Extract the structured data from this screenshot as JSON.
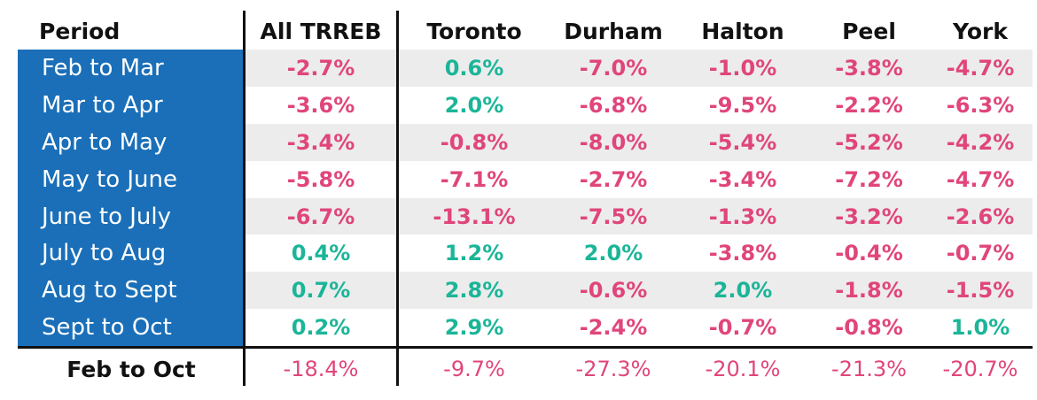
{
  "colors": {
    "negative": "#e0457b",
    "positive": "#1bb598",
    "period_bg": "#1a6fb8",
    "stripe": "#ececec"
  },
  "chart_data": {
    "type": "table",
    "columns": [
      "Period",
      "All TRREB",
      "Toronto",
      "Durham",
      "Halton",
      "Peel",
      "York"
    ],
    "rows": [
      {
        "period": "Feb to Mar",
        "values": [
          "-2.7%",
          "0.6%",
          "-7.0%",
          "-1.0%",
          "-3.8%",
          "-4.7%"
        ]
      },
      {
        "period": "Mar to Apr",
        "values": [
          "-3.6%",
          "2.0%",
          "-6.8%",
          "-9.5%",
          "-2.2%",
          "-6.3%"
        ]
      },
      {
        "period": "Apr to May",
        "values": [
          "-3.4%",
          "-0.8%",
          "-8.0%",
          "-5.4%",
          "-5.2%",
          "-4.2%"
        ]
      },
      {
        "period": "May to June",
        "values": [
          "-5.8%",
          "-7.1%",
          "-2.7%",
          "-3.4%",
          "-7.2%",
          "-4.7%"
        ]
      },
      {
        "period": "June to July",
        "values": [
          "-6.7%",
          "-13.1%",
          "-7.5%",
          "-1.3%",
          "-3.2%",
          "-2.6%"
        ]
      },
      {
        "period": "July to Aug",
        "values": [
          "0.4%",
          "1.2%",
          "2.0%",
          "-3.8%",
          "-0.4%",
          "-0.7%"
        ]
      },
      {
        "period": "Aug to Sept",
        "values": [
          "0.7%",
          "2.8%",
          "-0.6%",
          "2.0%",
          "-1.8%",
          "-1.5%"
        ]
      },
      {
        "period": "Sept to Oct",
        "values": [
          "0.2%",
          "2.9%",
          "-2.4%",
          "-0.7%",
          "-0.8%",
          "1.0%"
        ]
      }
    ],
    "total": {
      "period": "Feb to Oct",
      "values": [
        "-18.4%",
        "-9.7%",
        "-27.3%",
        "-20.1%",
        "-21.3%",
        "-20.7%"
      ]
    }
  }
}
